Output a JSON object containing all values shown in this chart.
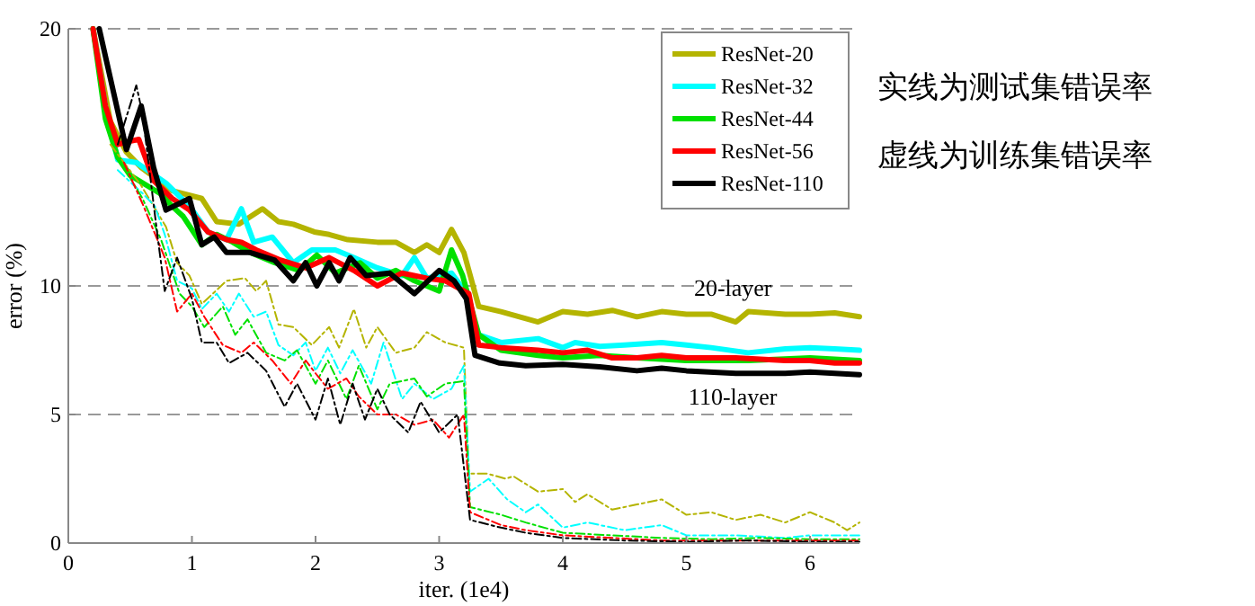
{
  "chart_data": {
    "type": "line",
    "xlabel": "iter. (1e4)",
    "ylabel": "error (%)",
    "xlim": [
      0,
      6.4
    ],
    "ylim": [
      0,
      20
    ],
    "xticks": [
      0,
      1,
      2,
      3,
      4,
      5,
      6
    ],
    "yticks": [
      0,
      5,
      10,
      20
    ],
    "grid": "y",
    "legend": "top right",
    "annotations": [
      "20-layer",
      "110-layer",
      "实线为测试集错误率",
      "虚线为训练集错误率"
    ],
    "series": [
      {
        "name": "ResNet-20",
        "color": "#b4b400",
        "line_style": "solid",
        "x": [
          0.2,
          0.34,
          0.47,
          0.59,
          0.84,
          1.08,
          1.2,
          1.38,
          1.57,
          1.7,
          1.82,
          1.99,
          2.11,
          2.26,
          2.5,
          2.65,
          2.8,
          2.9,
          3.0,
          3.1,
          3.2,
          3.32,
          3.5,
          3.8,
          4.0,
          4.2,
          4.4,
          4.6,
          4.8,
          5.0,
          5.2,
          5.4,
          5.5,
          5.8,
          6.0,
          6.2,
          6.4
        ],
        "values": [
          20,
          16.4,
          15.2,
          14.6,
          13.7,
          13.4,
          12.5,
          12.4,
          13.0,
          12.5,
          12.4,
          12.1,
          12.0,
          11.8,
          11.7,
          11.7,
          11.3,
          11.6,
          11.3,
          12.2,
          11.3,
          9.2,
          9.0,
          8.6,
          9.0,
          8.9,
          9.05,
          8.8,
          9.0,
          8.9,
          8.9,
          8.6,
          9.0,
          8.9,
          8.9,
          8.95,
          8.8
        ]
      },
      {
        "name": "ResNet-32",
        "color": "#00ffff",
        "line_style": "solid",
        "x": [
          0.2,
          0.3,
          0.4,
          0.55,
          0.79,
          0.98,
          1.13,
          1.28,
          1.4,
          1.5,
          1.65,
          1.82,
          1.97,
          2.16,
          2.31,
          2.5,
          2.7,
          2.8,
          2.9,
          3.1,
          3.19,
          3.32,
          3.5,
          3.8,
          4.0,
          4.1,
          4.3,
          4.5,
          4.8,
          5.0,
          5.2,
          5.5,
          5.8,
          6.0,
          6.2,
          6.4
        ],
        "values": [
          20,
          17,
          14.9,
          14.8,
          14.0,
          13.1,
          12.1,
          11.8,
          13.0,
          11.7,
          11.9,
          10.9,
          11.4,
          11.4,
          11.1,
          10.7,
          10.4,
          11.1,
          10.3,
          10.5,
          9.9,
          8.1,
          7.8,
          7.95,
          7.6,
          7.8,
          7.65,
          7.7,
          7.8,
          7.7,
          7.6,
          7.4,
          7.55,
          7.6,
          7.55,
          7.5
        ]
      },
      {
        "name": "ResNet-44",
        "color": "#00e000",
        "line_style": "solid",
        "x": [
          0.2,
          0.3,
          0.4,
          0.5,
          0.74,
          0.84,
          0.93,
          1.08,
          1.2,
          1.33,
          1.47,
          1.67,
          1.87,
          2.01,
          2.16,
          2.36,
          2.5,
          2.65,
          2.8,
          3.0,
          3.1,
          3.19,
          3.32,
          3.5,
          3.8,
          4.0,
          4.3,
          4.6,
          5.0,
          5.5,
          6.0,
          6.4
        ],
        "values": [
          20,
          16.5,
          15,
          14.3,
          13.6,
          13.1,
          12.7,
          11.6,
          12.0,
          11.7,
          11.3,
          10.9,
          10.6,
          11.2,
          10.5,
          10.9,
          10.3,
          10.6,
          10.2,
          9.8,
          11.4,
          10.4,
          8.1,
          7.5,
          7.3,
          7.2,
          7.3,
          7.2,
          7.1,
          7.1,
          7.2,
          7.1
        ]
      },
      {
        "name": "ResNet-56",
        "color": "#ff0000",
        "line_style": "solid",
        "x": [
          0.2,
          0.3,
          0.4,
          0.47,
          0.57,
          0.69,
          0.84,
          0.98,
          1.13,
          1.28,
          1.4,
          1.52,
          1.72,
          1.92,
          2.11,
          2.31,
          2.5,
          2.7,
          2.9,
          3.05,
          3.24,
          3.32,
          3.5,
          3.8,
          4.0,
          4.2,
          4.4,
          4.6,
          4.8,
          5.0,
          5.4,
          5.8,
          6.0,
          6.2,
          6.4
        ],
        "values": [
          20,
          17,
          15.5,
          15.6,
          15.7,
          14.1,
          13.4,
          12.95,
          12.1,
          11.8,
          11.7,
          11.4,
          11.0,
          10.7,
          11.1,
          10.6,
          10.0,
          10.5,
          10.3,
          10.2,
          9.7,
          7.7,
          7.6,
          7.5,
          7.4,
          7.5,
          7.2,
          7.2,
          7.3,
          7.2,
          7.2,
          7.1,
          7.1,
          7.0,
          7.0
        ]
      },
      {
        "name": "ResNet-110",
        "color": "#000000",
        "line_style": "solid",
        "x": [
          0.25,
          0.47,
          0.59,
          0.69,
          0.79,
          0.98,
          1.08,
          1.18,
          1.28,
          1.47,
          1.67,
          1.82,
          1.92,
          2.01,
          2.11,
          2.19,
          2.28,
          2.41,
          2.6,
          2.8,
          3.0,
          3.12,
          3.22,
          3.29,
          3.49,
          3.7,
          4.0,
          4.3,
          4.6,
          4.8,
          5.0,
          5.4,
          5.8,
          6.0,
          6.4
        ],
        "values": [
          20,
          15.3,
          17.0,
          14.6,
          12.95,
          13.4,
          11.6,
          11.9,
          11.3,
          11.3,
          11.0,
          10.2,
          10.9,
          10.0,
          10.9,
          10.2,
          11.1,
          10.4,
          10.5,
          9.7,
          10.6,
          10.2,
          9.5,
          7.3,
          7.0,
          6.9,
          6.95,
          6.85,
          6.7,
          6.8,
          6.7,
          6.6,
          6.6,
          6.65,
          6.55
        ]
      },
      {
        "color": "#b4b400",
        "line_style": "dashed",
        "x": [
          0.34,
          0.59,
          0.79,
          0.88,
          0.98,
          1.08,
          1.28,
          1.43,
          1.52,
          1.6,
          1.7,
          1.82,
          1.97,
          2.11,
          2.19,
          2.31,
          2.41,
          2.5,
          2.65,
          2.8,
          2.9,
          3.05,
          3.2,
          3.24,
          3.39,
          3.54,
          3.6,
          3.8,
          4.0,
          4.1,
          4.2,
          4.4,
          4.6,
          4.8,
          5.0,
          5.2,
          5.4,
          5.6,
          5.8,
          6.0,
          6.2,
          6.3,
          6.4
        ],
        "values": [
          15.5,
          13.9,
          12.3,
          10.9,
          10.4,
          9.3,
          10.2,
          10.3,
          9.8,
          10.2,
          8.5,
          8.4,
          7.7,
          8.4,
          7.6,
          9.1,
          7.6,
          8.4,
          7.4,
          7.6,
          8.2,
          7.8,
          7.6,
          2.7,
          2.7,
          2.5,
          2.6,
          2.0,
          2.1,
          1.6,
          1.9,
          1.3,
          1.5,
          1.7,
          1.1,
          1.2,
          0.9,
          1.1,
          0.8,
          1.2,
          0.8,
          0.5,
          0.8
        ]
      },
      {
        "color": "#00ffff",
        "line_style": "dashed",
        "x": [
          0.4,
          0.6,
          0.7,
          0.78,
          0.88,
          1.0,
          1.08,
          1.2,
          1.3,
          1.38,
          1.5,
          1.6,
          1.7,
          1.82,
          1.92,
          2.0,
          2.1,
          2.2,
          2.3,
          2.45,
          2.55,
          2.7,
          2.8,
          2.95,
          3.1,
          3.2,
          3.25,
          3.4,
          3.55,
          3.7,
          3.8,
          4.0,
          4.2,
          4.5,
          4.8,
          5.0,
          5.4,
          5.8,
          6.0,
          6.4
        ],
        "values": [
          14.5,
          13.6,
          13.1,
          12.0,
          10.2,
          9.9,
          9.1,
          9.7,
          9.0,
          9.7,
          8.8,
          9.0,
          7.7,
          7.3,
          7.8,
          6.7,
          7.6,
          6.6,
          7.5,
          6.2,
          7.8,
          5.6,
          6.2,
          5.6,
          6.0,
          6.9,
          2.0,
          2.5,
          1.7,
          1.2,
          1.5,
          0.6,
          0.8,
          0.5,
          0.7,
          0.3,
          0.3,
          0.2,
          0.3,
          0.3
        ]
      },
      {
        "color": "#00e000",
        "line_style": "dashed",
        "x": [
          0.4,
          0.6,
          0.75,
          0.9,
          1.0,
          1.1,
          1.25,
          1.35,
          1.45,
          1.6,
          1.75,
          1.85,
          2.0,
          2.1,
          2.25,
          2.35,
          2.5,
          2.6,
          2.8,
          2.9,
          3.05,
          3.2,
          3.25,
          3.5,
          3.7,
          4.0,
          4.4,
          4.8,
          5.2,
          5.6,
          6.0,
          6.4
        ],
        "values": [
          15,
          13.4,
          11.8,
          9.7,
          9.2,
          8.4,
          9.2,
          8.1,
          8.7,
          7.4,
          7.1,
          7.5,
          6.2,
          7.1,
          5.6,
          6.9,
          5.2,
          6.2,
          6.4,
          5.7,
          6.2,
          6.3,
          1.4,
          1.1,
          0.8,
          0.4,
          0.3,
          0.2,
          0.15,
          0.2,
          0.15,
          0.15
        ]
      },
      {
        "color": "#ff0000",
        "line_style": "dashed",
        "x": [
          0.45,
          0.6,
          0.78,
          0.88,
          1.0,
          1.1,
          1.25,
          1.4,
          1.5,
          1.65,
          1.8,
          1.92,
          2.0,
          2.1,
          2.25,
          2.35,
          2.5,
          2.65,
          2.8,
          2.95,
          3.08,
          3.2,
          3.25,
          3.5,
          3.7,
          4.0,
          4.4,
          4.8,
          5.2,
          5.6,
          6.0,
          6.4
        ],
        "values": [
          14.8,
          13.2,
          11.1,
          9.0,
          9.7,
          8.8,
          7.7,
          7.4,
          7.8,
          7.1,
          6.2,
          7.1,
          6.6,
          6.0,
          6.4,
          5.7,
          5.0,
          5.0,
          4.6,
          4.8,
          4.1,
          5.0,
          1.2,
          0.7,
          0.5,
          0.3,
          0.2,
          0.1,
          0.1,
          0.1,
          0.1,
          0.1
        ]
      },
      {
        "color": "#000000",
        "line_style": "dashed",
        "x": [
          0.4,
          0.55,
          0.6,
          0.72,
          0.78,
          0.88,
          1.0,
          1.08,
          1.2,
          1.3,
          1.45,
          1.6,
          1.75,
          1.85,
          2.0,
          2.1,
          2.2,
          2.3,
          2.4,
          2.5,
          2.6,
          2.75,
          2.85,
          3.0,
          3.15,
          3.25,
          3.5,
          3.7,
          4.0,
          4.5,
          5.0,
          5.5,
          6.0,
          6.4
        ],
        "values": [
          15.5,
          17.8,
          16.7,
          12.0,
          9.8,
          11.1,
          9.5,
          7.8,
          7.8,
          7.0,
          7.4,
          6.7,
          5.3,
          6.2,
          4.8,
          6.4,
          4.6,
          6.2,
          4.8,
          6.0,
          5.0,
          4.3,
          5.5,
          4.3,
          5.0,
          0.9,
          0.6,
          0.4,
          0.2,
          0.1,
          0.05,
          0.1,
          0.05,
          0.05
        ]
      }
    ]
  }
}
